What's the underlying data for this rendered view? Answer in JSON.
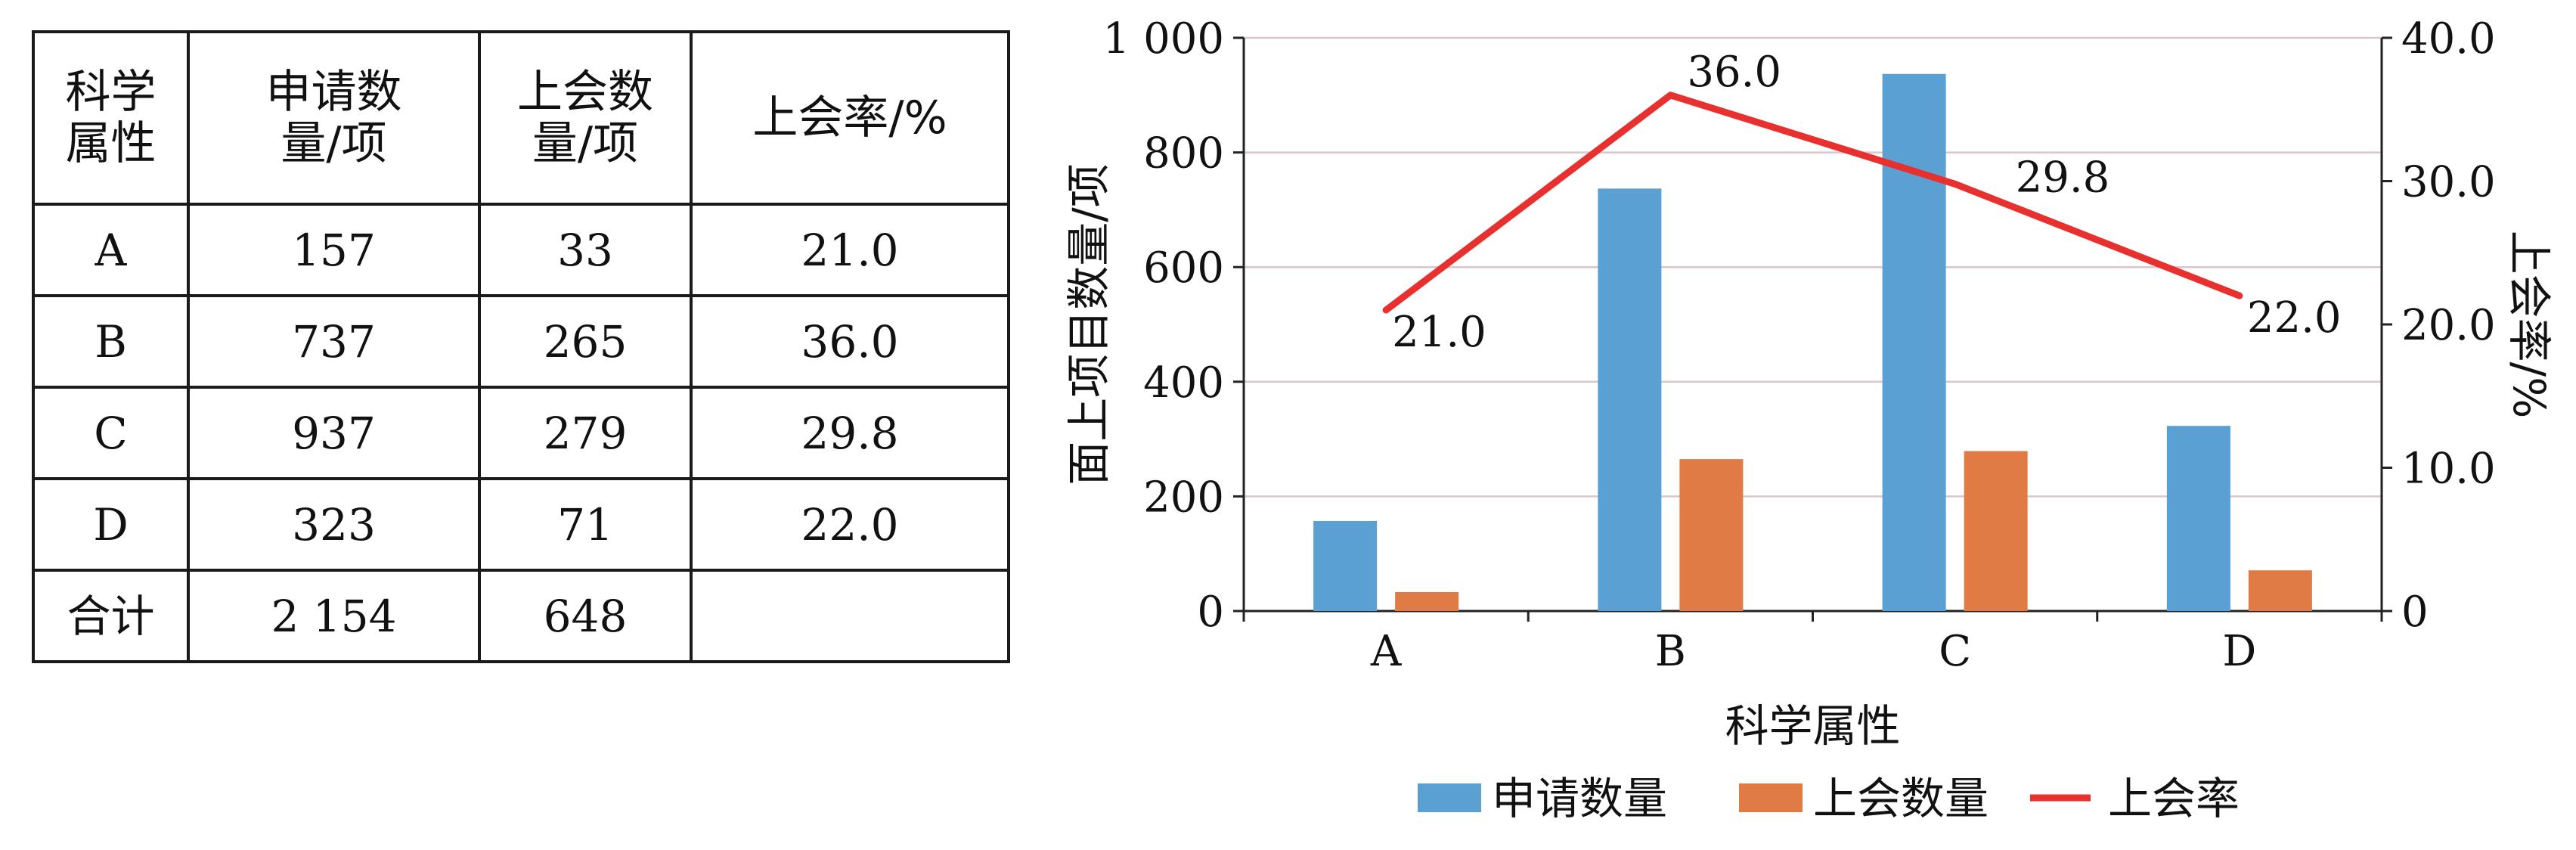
{
  "table": {
    "headers": [
      "科学属性",
      "申请数量/项",
      "上会数量/项",
      "上会率/%"
    ],
    "header_lines": [
      [
        "科学",
        "属性"
      ],
      [
        "申请数",
        "量/项"
      ],
      [
        "上会数",
        "量/项"
      ],
      [
        "上会率/%"
      ]
    ],
    "rows": [
      [
        "A",
        "157",
        "33",
        "21.0"
      ],
      [
        "B",
        "737",
        "265",
        "36.0"
      ],
      [
        "C",
        "937",
        "279",
        "29.8"
      ],
      [
        "D",
        "323",
        "71",
        "22.0"
      ],
      [
        "合计",
        "2 154",
        "648",
        ""
      ]
    ]
  },
  "chart_data": {
    "type": "bar",
    "categories": [
      "A",
      "B",
      "C",
      "D"
    ],
    "xlabel": "科学属性",
    "ylabel": "面上项目数量/项",
    "ylabel_right": "上会率/%",
    "ylim": [
      0,
      1000
    ],
    "ylim_right": [
      0,
      40
    ],
    "yticks": [
      "0",
      "200",
      "400",
      "600",
      "800",
      "1 000"
    ],
    "yticks_right": [
      "0",
      "10.0",
      "20.0",
      "30.0",
      "40.0"
    ],
    "grid": true,
    "legend_position": "bottom",
    "series": [
      {
        "name": "申请数量",
        "type": "bar",
        "axis": "left",
        "color": "#5aa0d2",
        "values": [
          157,
          737,
          937,
          323
        ]
      },
      {
        "name": "上会数量",
        "type": "bar",
        "axis": "left",
        "color": "#e07b46",
        "values": [
          33,
          265,
          279,
          71
        ]
      },
      {
        "name": "上会率",
        "type": "line",
        "axis": "right",
        "color": "#e8302e",
        "values": [
          21.0,
          36.0,
          29.8,
          22.0
        ],
        "data_labels": [
          "21.0",
          "36.0",
          "29.8",
          "22.0"
        ]
      }
    ]
  }
}
